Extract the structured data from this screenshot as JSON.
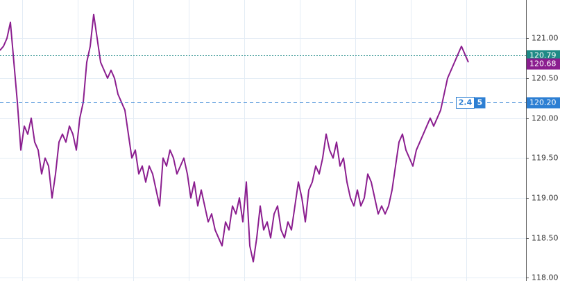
{
  "chart_data": {
    "type": "line",
    "series": [
      {
        "color": "#8b1e8f",
        "values": [
          120.85,
          120.9,
          121.0,
          121.2,
          120.7,
          120.2,
          119.6,
          119.9,
          119.8,
          120.0,
          119.7,
          119.6,
          119.3,
          119.5,
          119.4,
          119.0,
          119.3,
          119.7,
          119.8,
          119.7,
          119.9,
          119.8,
          119.6,
          120.0,
          120.2,
          120.7,
          120.9,
          121.3,
          121.0,
          120.7,
          120.6,
          120.5,
          120.6,
          120.5,
          120.3,
          120.2,
          120.1,
          119.8,
          119.5,
          119.6,
          119.3,
          119.4,
          119.2,
          119.4,
          119.3,
          119.1,
          118.9,
          119.5,
          119.4,
          119.6,
          119.5,
          119.3,
          119.4,
          119.5,
          119.3,
          119.0,
          119.2,
          118.9,
          119.1,
          118.9,
          118.7,
          118.8,
          118.6,
          118.5,
          118.4,
          118.7,
          118.6,
          118.9,
          118.8,
          119.0,
          118.7,
          119.2,
          118.4,
          118.2,
          118.5,
          118.9,
          118.6,
          118.7,
          118.5,
          118.8,
          118.9,
          118.6,
          118.5,
          118.7,
          118.6,
          118.9,
          119.2,
          119.0,
          118.7,
          119.1,
          119.2,
          119.4,
          119.3,
          119.5,
          119.8,
          119.6,
          119.5,
          119.7,
          119.4,
          119.5,
          119.2,
          119.0,
          118.9,
          119.1,
          118.9,
          119.0,
          119.3,
          119.2,
          119.0,
          118.8,
          118.9,
          118.8,
          118.9,
          119.1,
          119.4,
          119.7,
          119.8,
          119.6,
          119.5,
          119.4,
          119.6,
          119.7,
          119.8,
          119.9,
          120.0,
          119.9,
          120.0,
          120.1,
          120.3,
          120.5,
          120.6,
          120.7,
          120.8,
          120.9,
          120.8,
          120.7
        ]
      }
    ],
    "ylim": [
      117.96,
      121.48
    ],
    "yticks": [
      {
        "value": 118,
        "label": "118.00"
      },
      {
        "value": 118.5,
        "label": "118.50"
      },
      {
        "value": 119,
        "label": "119.00"
      },
      {
        "value": 119.5,
        "label": "119.50"
      },
      {
        "value": 120,
        "label": "120.00"
      },
      {
        "value": 120.5,
        "label": "120.50"
      },
      {
        "value": 121,
        "label": "121.00"
      }
    ],
    "grid": true,
    "price_markers": [
      {
        "value": 120.79,
        "label": "120.79",
        "color": "#1f8a86",
        "line": "dotted"
      },
      {
        "value": 120.68,
        "label": "120.68",
        "color": "#8b1e8f",
        "line": "none"
      },
      {
        "value": 120.2,
        "label": "120.20",
        "color": "#2d7fd3",
        "line": "dashed"
      }
    ],
    "order_ticket": {
      "left": "2.4",
      "right": "5"
    }
  }
}
